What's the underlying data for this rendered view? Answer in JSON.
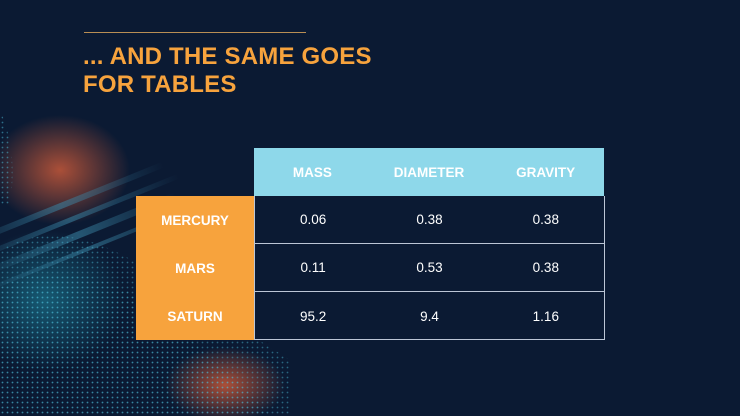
{
  "slide": {
    "title_lines": [
      "... AND THE SAME GOES",
      "FOR TABLES"
    ],
    "colors": {
      "background": "#0b1a33",
      "accent": "#f7a33d",
      "header": "#8ed8ea"
    }
  },
  "table": {
    "headers": [
      "MASS",
      "DIAMETER",
      "GRAVITY"
    ],
    "rows": [
      {
        "label": "MERCURY",
        "cells": [
          "0.06",
          "0.38",
          "0.38"
        ]
      },
      {
        "label": "MARS",
        "cells": [
          "0.11",
          "0.53",
          "0.38"
        ]
      },
      {
        "label": "SATURN",
        "cells": [
          "95.2",
          "9.4",
          "1.16"
        ]
      }
    ]
  }
}
